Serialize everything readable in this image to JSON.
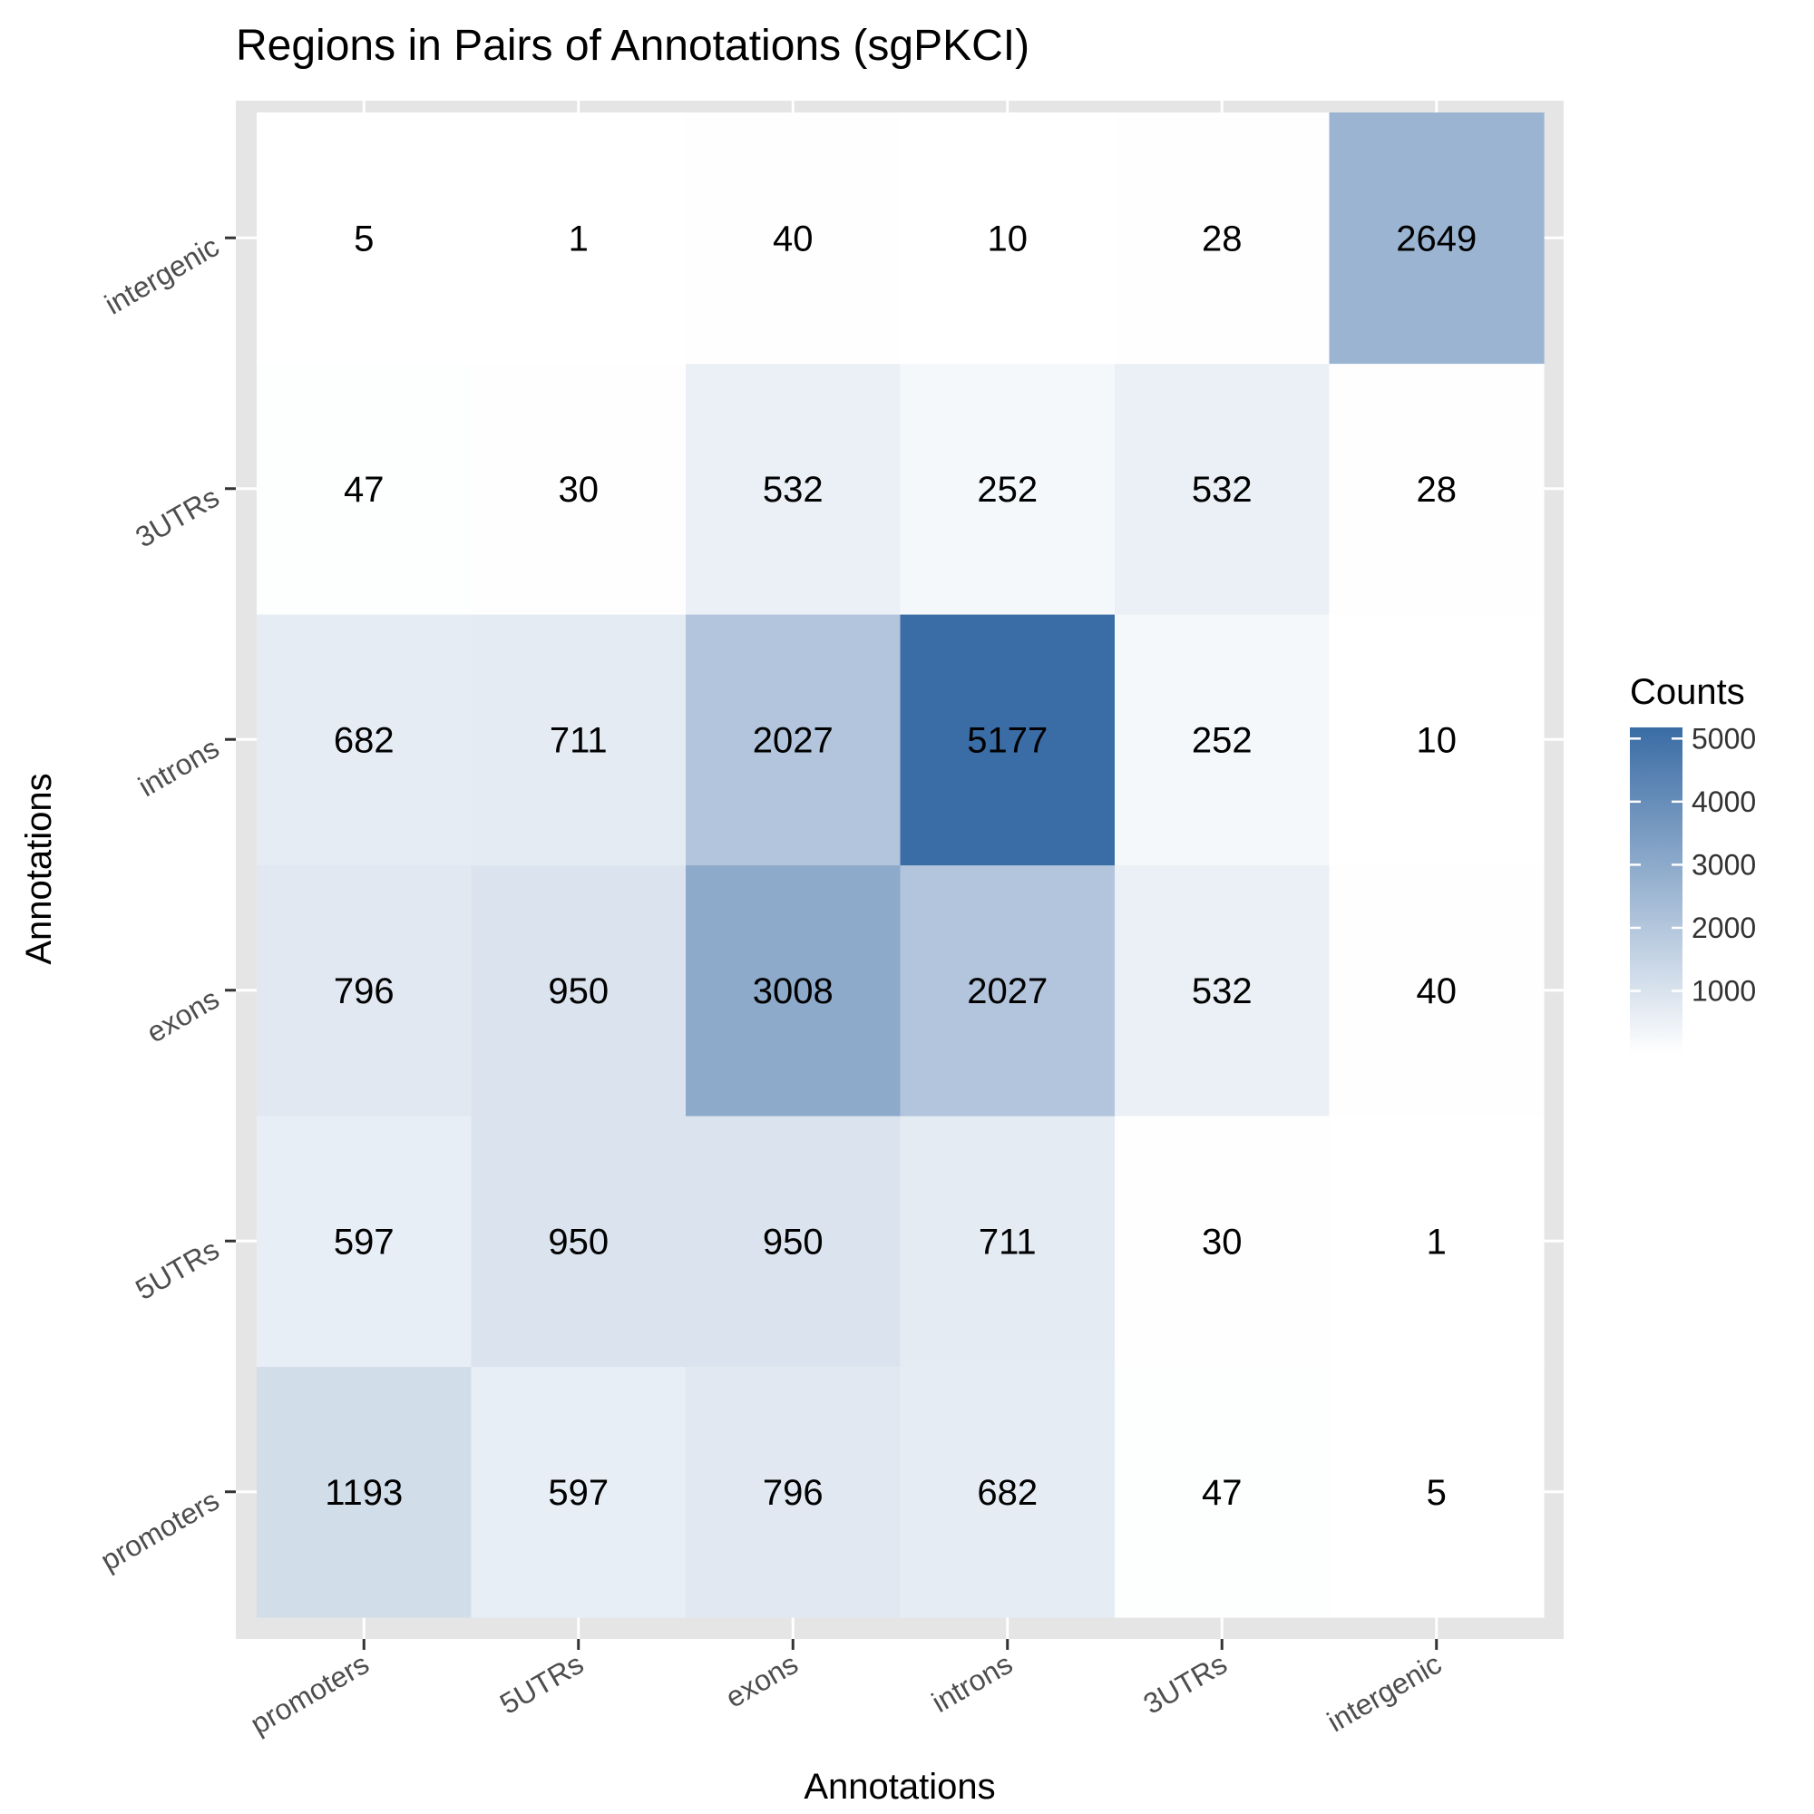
{
  "chart_data": {
    "type": "heatmap",
    "title": "Regions in Pairs of Annotations (sgPKCI)",
    "xlabel": "Annotations",
    "ylabel": "Annotations",
    "x_categories": [
      "promoters",
      "5UTRs",
      "exons",
      "introns",
      "3UTRs",
      "intergenic"
    ],
    "y_categories": [
      "promoters",
      "5UTRs",
      "exons",
      "introns",
      "3UTRs",
      "intergenic"
    ],
    "matrix": [
      [
        1193,
        597,
        796,
        682,
        47,
        5
      ],
      [
        597,
        950,
        950,
        711,
        30,
        1
      ],
      [
        796,
        950,
        3008,
        2027,
        532,
        40
      ],
      [
        682,
        711,
        2027,
        5177,
        252,
        10
      ],
      [
        47,
        30,
        532,
        252,
        532,
        28
      ],
      [
        5,
        1,
        40,
        10,
        28,
        2649
      ]
    ],
    "legend": {
      "title": "Counts",
      "ticks": [
        1000,
        2000,
        3000,
        4000,
        5000
      ],
      "range": [
        1,
        5177
      ],
      "low_color": "#ffffff",
      "high_color": "#3a6ca5",
      "placement": "right"
    },
    "panel_background": "#e5e5e5",
    "grid": true
  }
}
